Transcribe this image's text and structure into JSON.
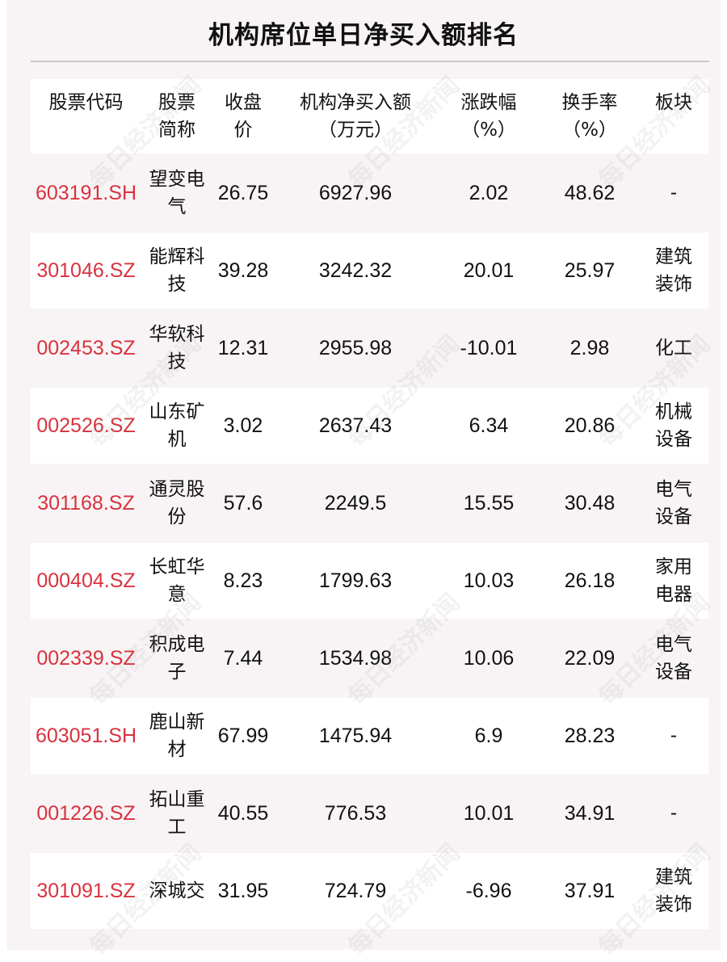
{
  "title": "机构席位单日净买入额排名",
  "watermark": "每日经济新闻",
  "headers": [
    "股票代码",
    "股票简称",
    "收盘价",
    "机构净买入额（万元）",
    "涨跌幅（%）",
    "换手率（%）",
    "板块"
  ],
  "rows": [
    {
      "code": "603191.SH",
      "name": "望变电气",
      "close": "26.75",
      "net_buy": "6927.96",
      "change": "2.02",
      "turnover": "48.62",
      "sector": "-"
    },
    {
      "code": "301046.SZ",
      "name": "能辉科技",
      "close": "39.28",
      "net_buy": "3242.32",
      "change": "20.01",
      "turnover": "25.97",
      "sector": "建筑装饰"
    },
    {
      "code": "002453.SZ",
      "name": "华软科技",
      "close": "12.31",
      "net_buy": "2955.98",
      "change": "-10.01",
      "turnover": "2.98",
      "sector": "化工"
    },
    {
      "code": "002526.SZ",
      "name": "山东矿机",
      "close": "3.02",
      "net_buy": "2637.43",
      "change": "6.34",
      "turnover": "20.86",
      "sector": "机械设备"
    },
    {
      "code": "301168.SZ",
      "name": "通灵股份",
      "close": "57.6",
      "net_buy": "2249.5",
      "change": "15.55",
      "turnover": "30.48",
      "sector": "电气设备"
    },
    {
      "code": "000404.SZ",
      "name": "长虹华意",
      "close": "8.23",
      "net_buy": "1799.63",
      "change": "10.03",
      "turnover": "26.18",
      "sector": "家用电器"
    },
    {
      "code": "002339.SZ",
      "name": "积成电子",
      "close": "7.44",
      "net_buy": "1534.98",
      "change": "10.06",
      "turnover": "22.09",
      "sector": "电气设备"
    },
    {
      "code": "603051.SH",
      "name": "鹿山新材",
      "close": "67.99",
      "net_buy": "1475.94",
      "change": "6.9",
      "turnover": "28.23",
      "sector": "-"
    },
    {
      "code": "001226.SZ",
      "name": "拓山重工",
      "close": "40.55",
      "net_buy": "776.53",
      "change": "10.01",
      "turnover": "34.91",
      "sector": "-"
    },
    {
      "code": "301091.SZ",
      "name": "深城交",
      "close": "31.95",
      "net_buy": "724.79",
      "change": "-6.96",
      "turnover": "37.91",
      "sector": "建筑装饰"
    }
  ],
  "colors": {
    "code": "#d9323e",
    "background": "#f8f4f5"
  }
}
